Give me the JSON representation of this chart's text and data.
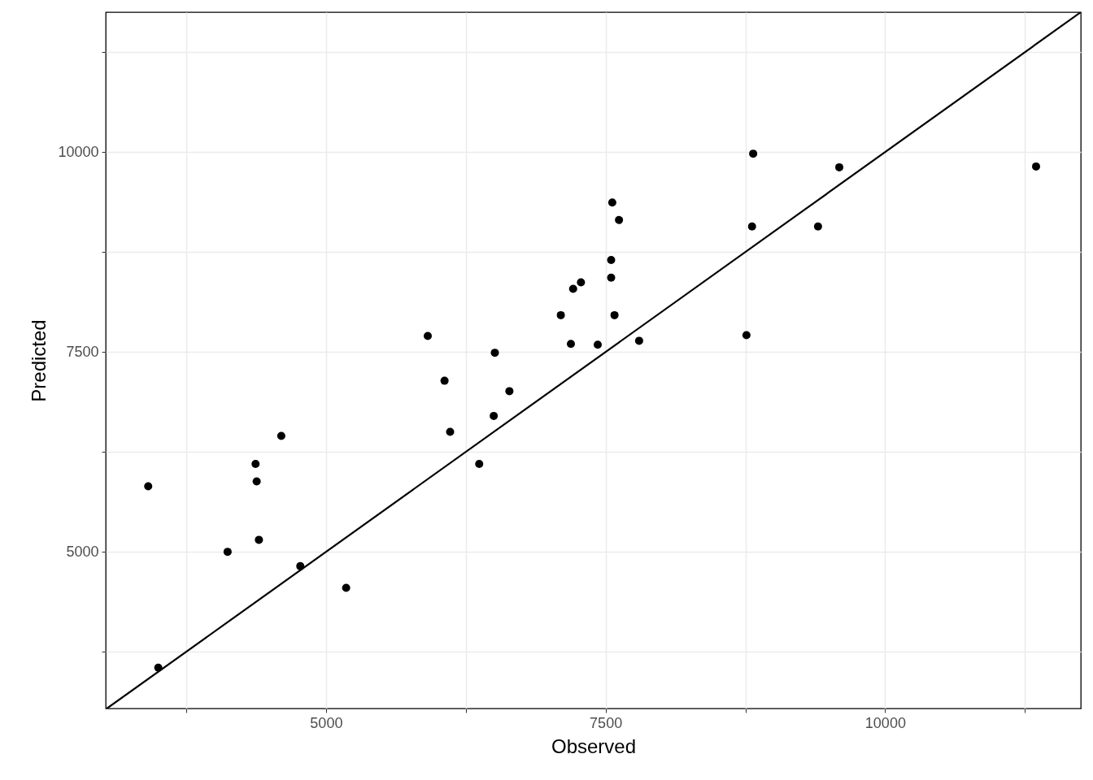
{
  "chart_data": {
    "type": "scatter",
    "xlabel": "Observed",
    "ylabel": "Predicted",
    "xlim": [
      3030,
      11750
    ],
    "ylim": [
      3040,
      11750
    ],
    "xticks": [
      {
        "value": 3750,
        "label": null
      },
      5000,
      {
        "value": 6250,
        "label": null
      },
      7500,
      {
        "value": 8750,
        "label": null
      },
      10000,
      {
        "value": 11250,
        "label": null
      }
    ],
    "yticks": [
      {
        "value": 3750,
        "label": null
      },
      5000,
      {
        "value": 6250,
        "label": null
      },
      7500,
      {
        "value": 8750,
        "label": null
      },
      10000,
      {
        "value": 11250,
        "label": null
      }
    ],
    "grid": true,
    "series": [
      {
        "color": "#000000",
        "marker": "circle",
        "x": [
          3410,
          3500,
          4120,
          4370,
          4380,
          4400,
          4600,
          4770,
          5180,
          5910,
          6060,
          6110,
          6370,
          6500,
          6510,
          6640,
          7100,
          7190,
          7210,
          7280,
          7430,
          7550,
          7550,
          7560,
          7580,
          7620,
          7800,
          8760,
          8810,
          8820,
          9400,
          9590,
          11350
        ],
        "values": [
          5820,
          3550,
          5000,
          6100,
          5880,
          5150,
          6450,
          4820,
          4550,
          7700,
          7140,
          6500,
          6100,
          6700,
          7490,
          7010,
          7960,
          7600,
          8290,
          8370,
          7590,
          8650,
          8430,
          9370,
          7960,
          9150,
          7640,
          7710,
          9070,
          9980,
          9070,
          9810,
          9820
        ]
      },
      {
        "type": "line",
        "color": "#000000",
        "line_style": "solid",
        "x": [
          3040,
          11750
        ],
        "values": [
          3040,
          11750
        ]
      }
    ]
  }
}
